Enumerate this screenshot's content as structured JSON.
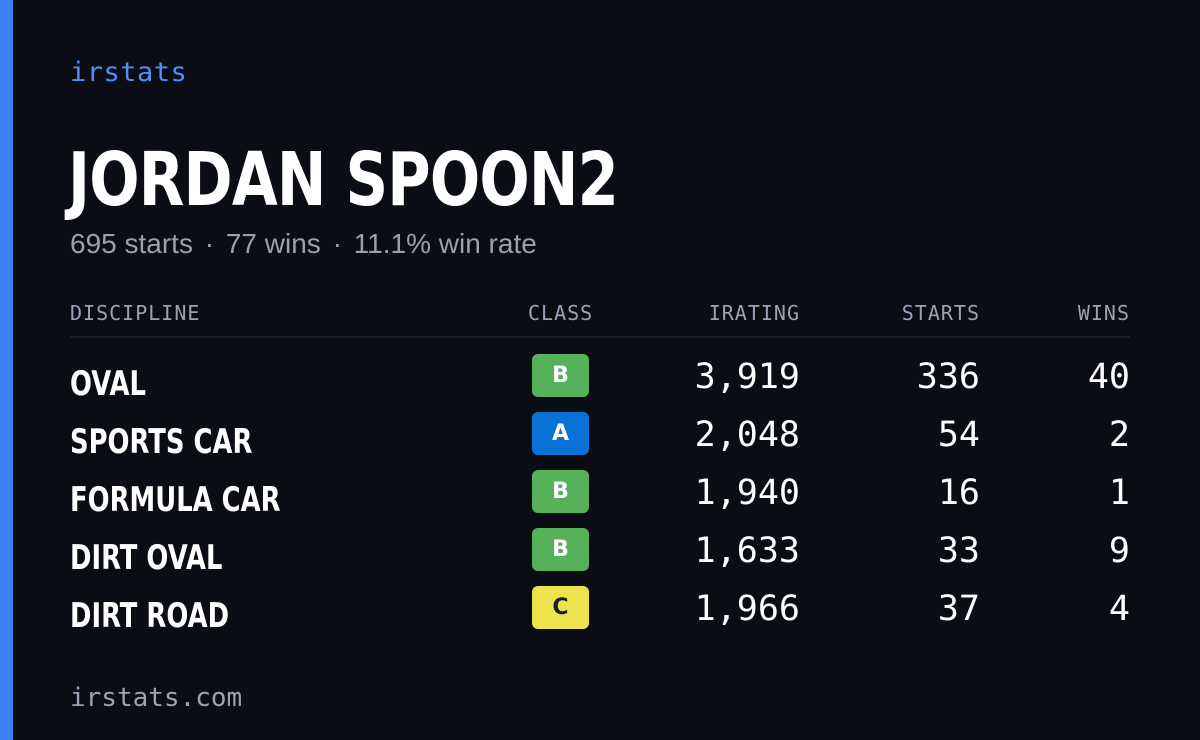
{
  "brand": "irstats",
  "player": {
    "name": "JORDAN SPOON2",
    "starts_text": "695 starts",
    "wins_text": "77 wins",
    "winrate_text": "11.1% win rate",
    "separator": "·"
  },
  "table": {
    "headers": {
      "discipline": "DISCIPLINE",
      "class": "CLASS",
      "irating": "IRATING",
      "starts": "STARTS",
      "wins": "WINS"
    },
    "rows": [
      {
        "discipline": "OVAL",
        "class": "B",
        "irating": "3,919",
        "starts": "336",
        "wins": "40"
      },
      {
        "discipline": "SPORTS CAR",
        "class": "A",
        "irating": "2,048",
        "starts": "54",
        "wins": "2"
      },
      {
        "discipline": "FORMULA CAR",
        "class": "B",
        "irating": "1,940",
        "starts": "16",
        "wins": "1"
      },
      {
        "discipline": "DIRT OVAL",
        "class": "B",
        "irating": "1,633",
        "starts": "33",
        "wins": "9"
      },
      {
        "discipline": "DIRT ROAD",
        "class": "C",
        "irating": "1,966",
        "starts": "37",
        "wins": "4"
      }
    ]
  },
  "class_colors": {
    "A": {
      "bg": "#0a72d6",
      "fg": "#ffffff"
    },
    "B": {
      "bg": "#56b15a",
      "fg": "#ffffff"
    },
    "C": {
      "bg": "#ede34d",
      "fg": "#1b1d24"
    }
  },
  "accent_color": "#3b82f6",
  "footer": "irstats.com"
}
